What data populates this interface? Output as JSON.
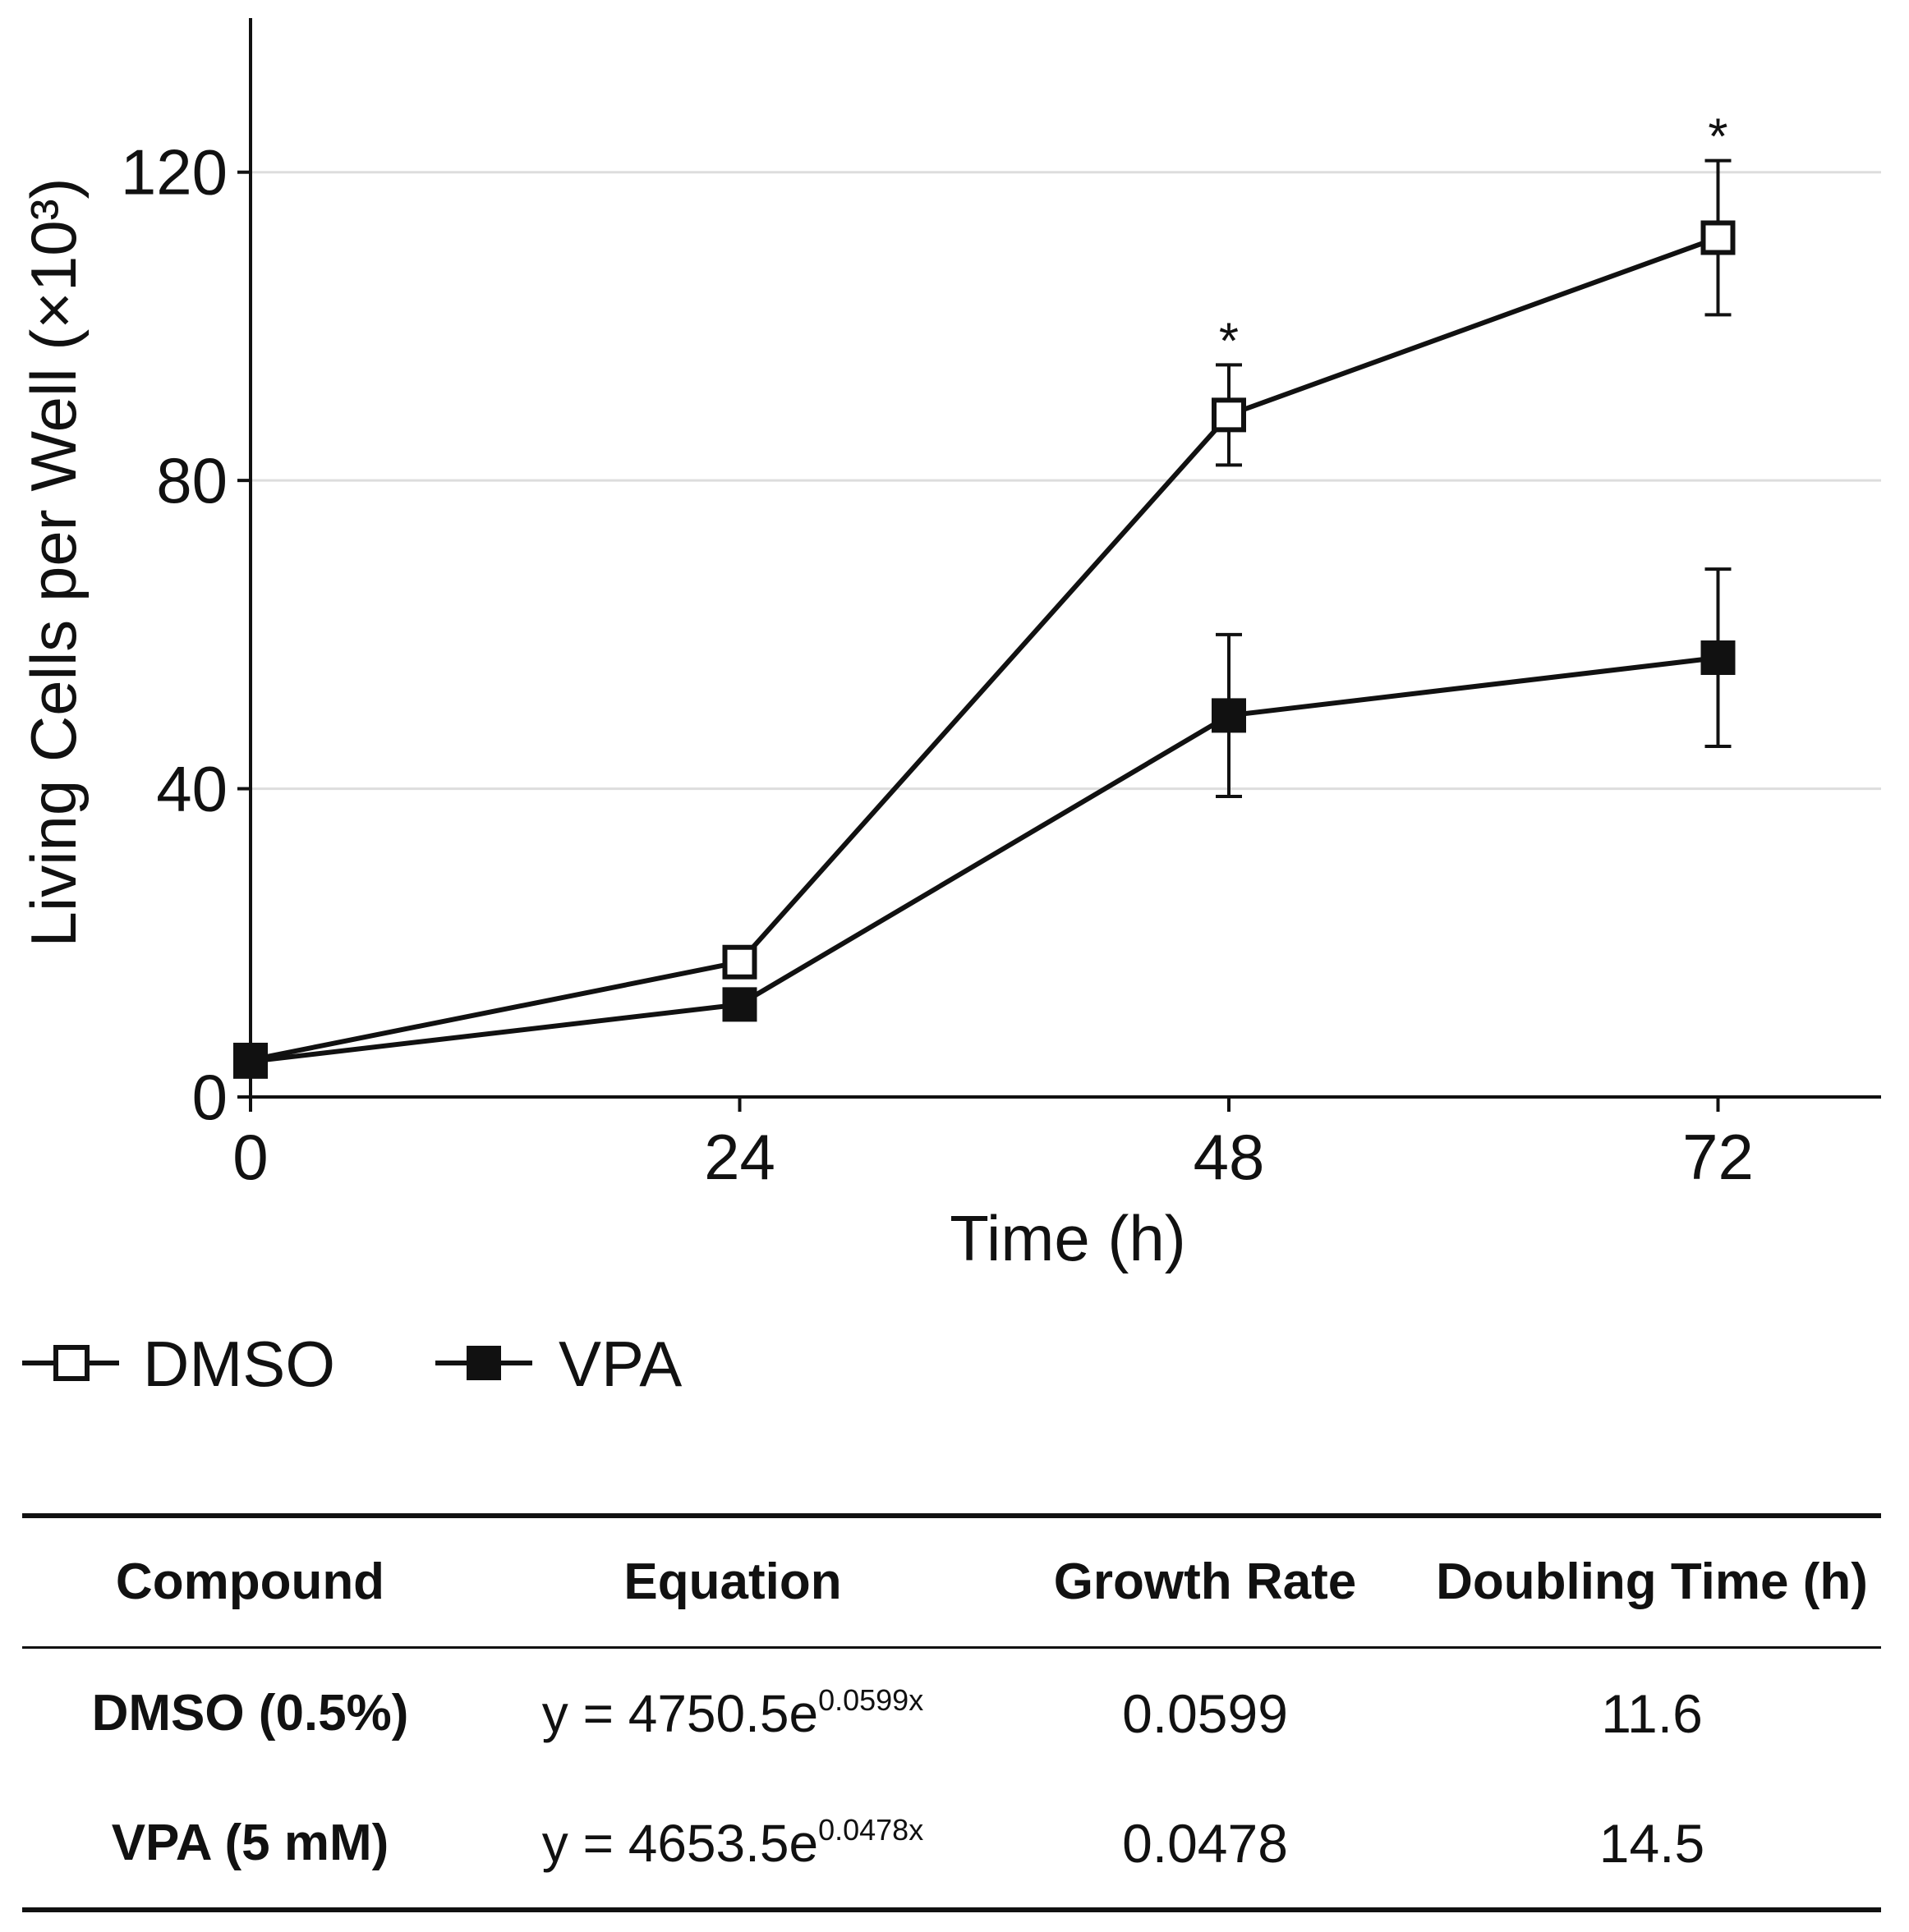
{
  "chart_data": {
    "type": "line",
    "xlabel": "Time (h)",
    "ylabel": "Living Cells per Well (×10³)",
    "x": [
      0,
      24,
      48,
      72
    ],
    "xticks": [
      "0",
      "24",
      "48",
      "72"
    ],
    "yticks": [
      "0",
      "40",
      "80",
      "120"
    ],
    "xlim": [
      0,
      80
    ],
    "ylim": [
      0,
      140
    ],
    "grid": "horizontal",
    "series": [
      {
        "name": "DMSO",
        "marker": "open-square",
        "values": [
          4.8,
          17.5,
          88.5,
          111.5
        ],
        "error": [
          0,
          0,
          6.5,
          10
        ],
        "significance": [
          "",
          "",
          "*",
          "*"
        ]
      },
      {
        "name": "VPA",
        "marker": "filled-square",
        "values": [
          4.6,
          12,
          49.5,
          57
        ],
        "error": [
          0,
          0,
          10.5,
          11.5
        ],
        "significance": [
          "",
          "",
          "",
          ""
        ]
      }
    ],
    "legend_position": "bottom-left"
  },
  "table": {
    "headers": [
      "Compound",
      "Equation",
      "Growth Rate",
      "Doubling Time (h)"
    ],
    "rows": [
      {
        "compound": "DMSO (0.5%)",
        "eq_base": "y = 4750.5e",
        "eq_exp": "0.0599x",
        "rate": "0.0599",
        "doubling": "11.6"
      },
      {
        "compound": "VPA (5 mM)",
        "eq_base": "y = 4653.5e",
        "eq_exp": "0.0478x",
        "rate": "0.0478",
        "doubling": "14.5"
      }
    ]
  }
}
